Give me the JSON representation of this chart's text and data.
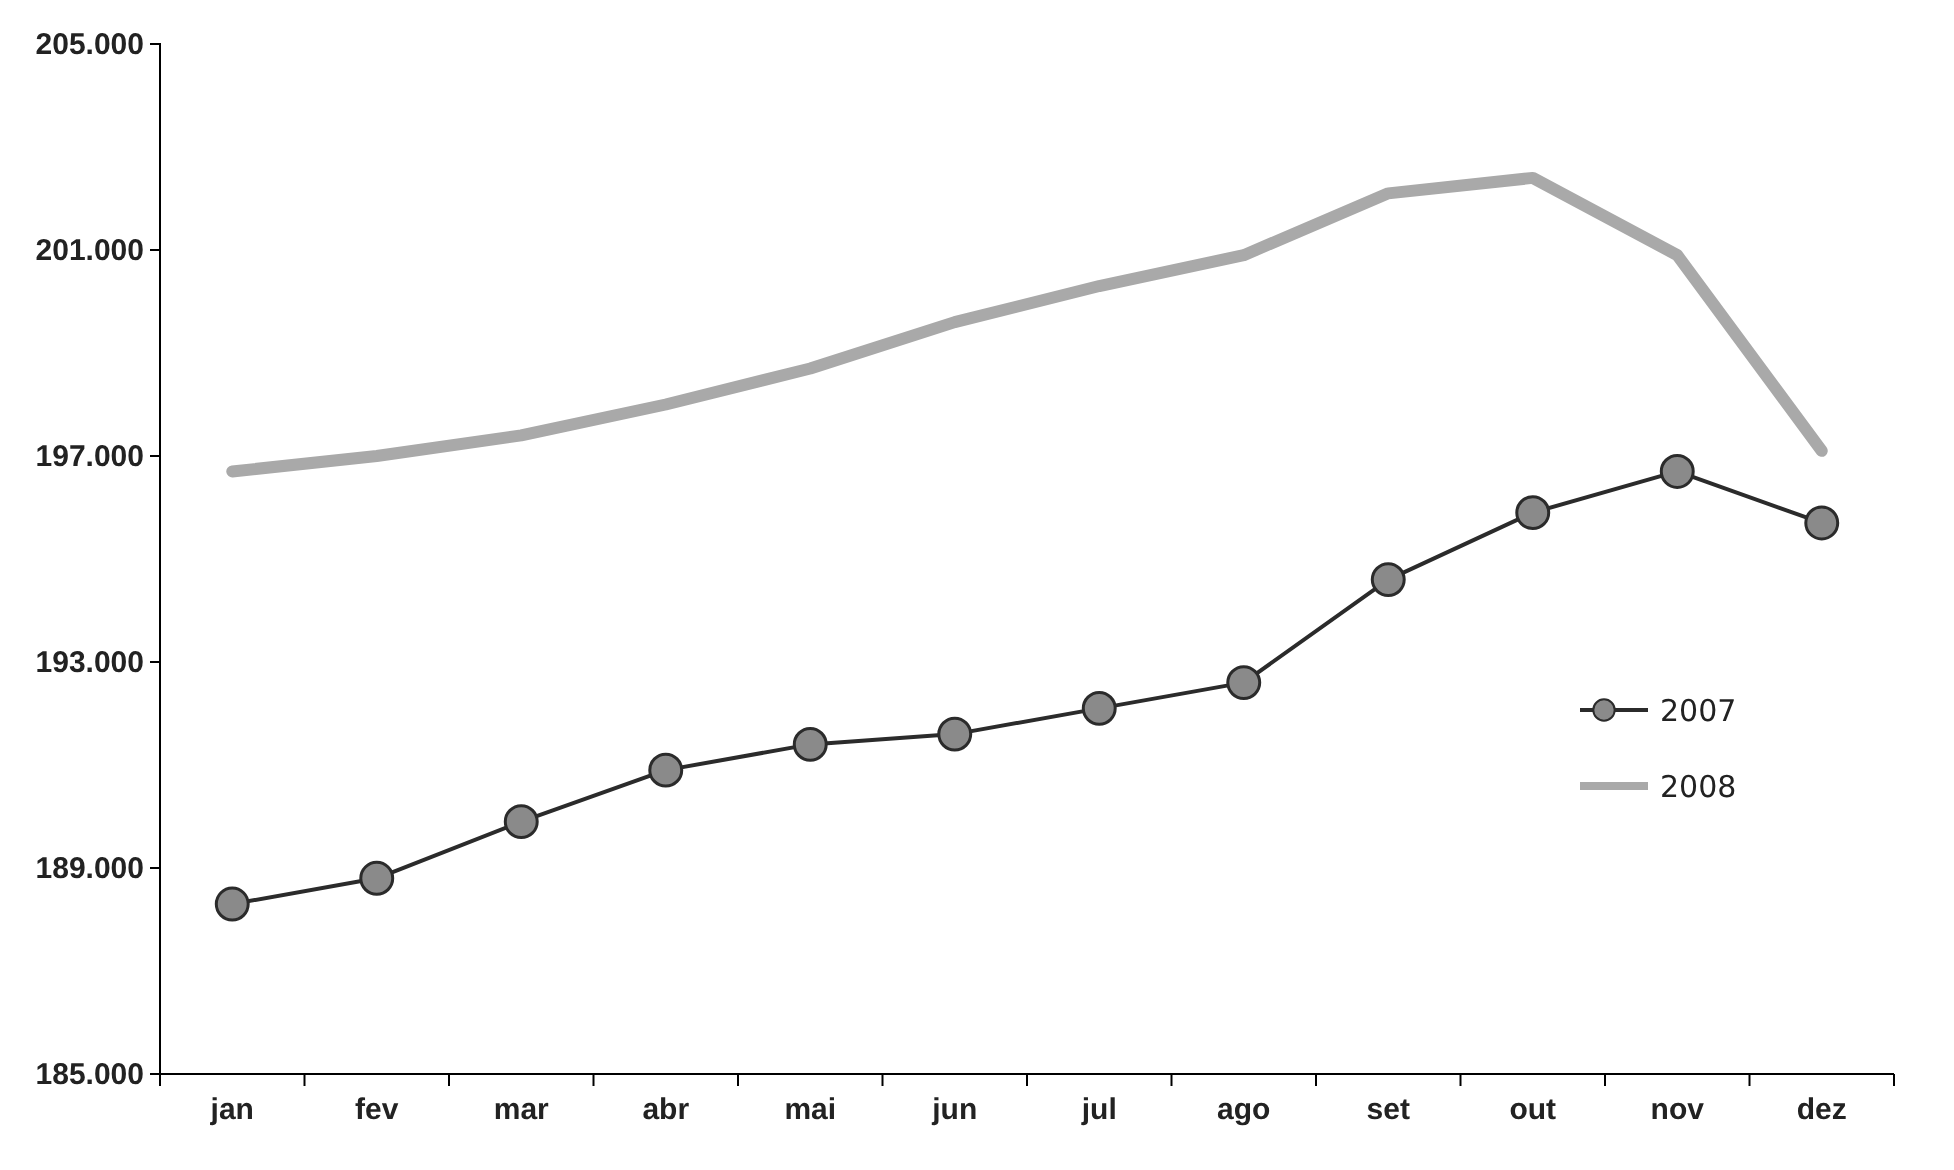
{
  "chart_data": {
    "type": "line",
    "categories": [
      "jan",
      "fev",
      "mar",
      "abr",
      "mai",
      "jun",
      "jul",
      "ago",
      "set",
      "out",
      "nov",
      "dez"
    ],
    "series": [
      {
        "name": "2007",
        "color": "#2b2b2b",
        "marker": "circle",
        "values": [
          188300,
          188800,
          189900,
          190900,
          191400,
          191600,
          192100,
          192600,
          194600,
          195900,
          196700,
          195700
        ]
      },
      {
        "name": "2008",
        "color": "#a9a9a9",
        "marker": "none",
        "values": [
          196700,
          197000,
          197400,
          198000,
          198700,
          199600,
          200300,
          200900,
          202100,
          202400,
          200900,
          197100
        ]
      }
    ],
    "ylim": [
      185000,
      205000
    ],
    "yticks": [
      {
        "value": 185000,
        "label": "185.000"
      },
      {
        "value": 189000,
        "label": "189.000"
      },
      {
        "value": 193000,
        "label": "193.000"
      },
      {
        "value": 197000,
        "label": "197.000"
      },
      {
        "value": 201000,
        "label": "201.000"
      },
      {
        "value": 205000,
        "label": "205.000"
      }
    ],
    "grid": false,
    "legend": "right"
  }
}
